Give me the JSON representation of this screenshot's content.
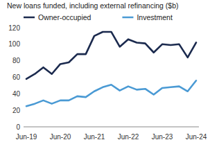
{
  "chart_data": {
    "type": "line",
    "title": "New loans funded, including external refinancing ($b)",
    "categories": [
      "Jun-19",
      null,
      null,
      null,
      "Jun-20",
      null,
      null,
      null,
      "Jun-21",
      null,
      null,
      null,
      "Jun-22",
      null,
      null,
      null,
      "Jun-23",
      null,
      null,
      null,
      "Jun-24"
    ],
    "series": [
      {
        "name": "Owner-occupied",
        "color": "#1b2a4e",
        "values": [
          58,
          64,
          72,
          64,
          76,
          78,
          88,
          88,
          110,
          115,
          115,
          97,
          106,
          102,
          101,
          90,
          100,
          99,
          100,
          84,
          102
        ]
      },
      {
        "name": "Investment",
        "color": "#4a9ad4",
        "values": [
          25,
          28,
          32,
          28,
          32,
          32,
          37,
          36,
          43,
          48,
          51,
          44,
          49,
          45,
          46,
          39,
          47,
          48,
          49,
          43,
          56
        ]
      }
    ],
    "ylim": [
      0,
      120
    ],
    "yticks": [
      0,
      20,
      40,
      60,
      80,
      100,
      120
    ],
    "grid": false,
    "legend": "top"
  }
}
